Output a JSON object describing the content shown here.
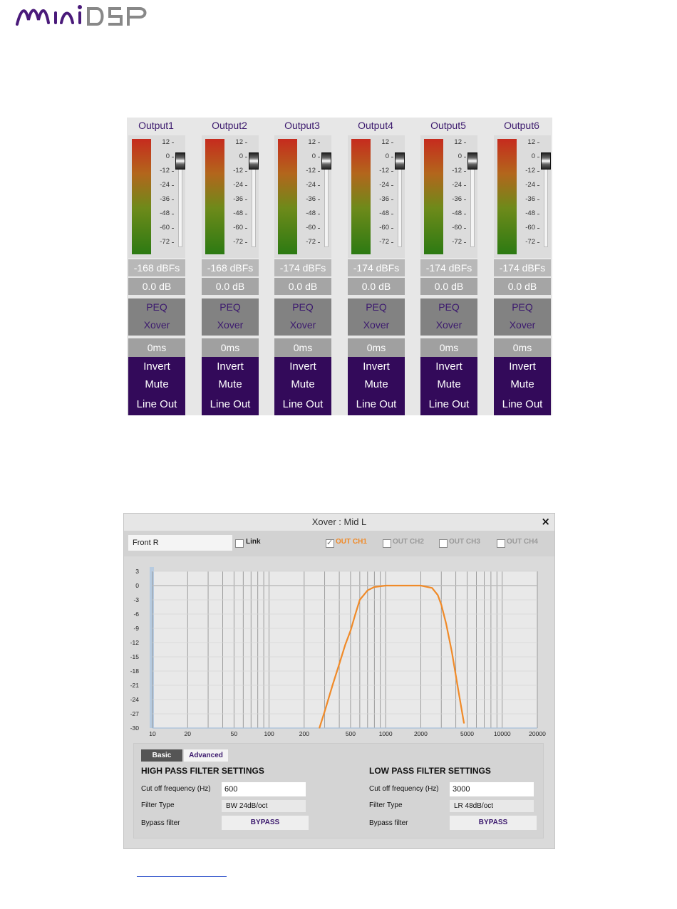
{
  "brand": {
    "logo": "miniDSP",
    "colors": {
      "purple": "#4a1a7a",
      "grey": "#888888"
    }
  },
  "outputs": [
    {
      "title": "Output1",
      "dbfs": "-168 dBFs",
      "gain": "0.0 dB",
      "peq": "PEQ",
      "xover": "Xover",
      "delay": "0ms",
      "invert": "Invert",
      "mute": "Mute",
      "line": "Line Out"
    },
    {
      "title": "Output2",
      "dbfs": "-168 dBFs",
      "gain": "0.0 dB",
      "peq": "PEQ",
      "xover": "Xover",
      "delay": "0ms",
      "invert": "Invert",
      "mute": "Mute",
      "line": "Line Out"
    },
    {
      "title": "Output3",
      "dbfs": "-174 dBFs",
      "gain": "0.0 dB",
      "peq": "PEQ",
      "xover": "Xover",
      "delay": "0ms",
      "invert": "Invert",
      "mute": "Mute",
      "line": "Line Out"
    },
    {
      "title": "Output4",
      "dbfs": "-174 dBFs",
      "gain": "0.0 dB",
      "peq": "PEQ",
      "xover": "Xover",
      "delay": "0ms",
      "invert": "Invert",
      "mute": "Mute",
      "line": "Line Out"
    },
    {
      "title": "Output5",
      "dbfs": "-174 dBFs",
      "gain": "0.0 dB",
      "peq": "PEQ",
      "xover": "Xover",
      "delay": "0ms",
      "invert": "Invert",
      "mute": "Mute",
      "line": "Line Out"
    },
    {
      "title": "Output6",
      "dbfs": "-174 dBFs",
      "gain": "0.0 dB",
      "peq": "PEQ",
      "xover": "Xover",
      "delay": "0ms",
      "invert": "Invert",
      "mute": "Mute",
      "line": "Line Out"
    }
  ],
  "meter_scale": [
    "12",
    "0",
    "-12",
    "-24",
    "-36",
    "-48",
    "-60",
    "-72"
  ],
  "xover": {
    "title": "Xover : Mid L",
    "close": "×",
    "name_value": "Front R",
    "link_label": "Link",
    "channels": [
      {
        "label": "OUT CH1",
        "checked": true,
        "color": "#f08a28"
      },
      {
        "label": "OUT CH2",
        "checked": false,
        "color": "#9a9a9a"
      },
      {
        "label": "OUT CH3",
        "checked": false,
        "color": "#9a9a9a"
      },
      {
        "label": "OUT CH4",
        "checked": false,
        "color": "#9a9a9a"
      }
    ],
    "tabs": {
      "basic": "Basic",
      "advanced": "Advanced"
    },
    "hp": {
      "title": "HIGH PASS FILTER SETTINGS",
      "cutoff_label": "Cut off frequency (Hz)",
      "cutoff_value": "600",
      "type_label": "Filter Type",
      "type_value": "BW 24dB/oct",
      "bypass_label": "Bypass filter",
      "bypass_button": "BYPASS"
    },
    "lp": {
      "title": "LOW PASS FILTER SETTINGS",
      "cutoff_label": "Cut off frequency (Hz)",
      "cutoff_value": "3000",
      "type_label": "Filter Type",
      "type_value": "LR 48dB/oct",
      "bypass_label": "Bypass filter",
      "bypass_button": "BYPASS"
    }
  },
  "chart_data": {
    "type": "line",
    "title": "",
    "xlabel": "",
    "ylabel": "",
    "x_scale": "log",
    "xlim": [
      10,
      20000
    ],
    "ylim": [
      -30,
      3
    ],
    "x_ticks": [
      "10",
      "20",
      "50",
      "100",
      "200",
      "500",
      "1000",
      "2000",
      "5000",
      "10000",
      "20000"
    ],
    "x_tick_values": [
      10,
      20,
      50,
      100,
      200,
      500,
      1000,
      2000,
      5000,
      10000,
      20000
    ],
    "y_ticks": [
      "3",
      "0",
      "-3",
      "-6",
      "-9",
      "-12",
      "-15",
      "-18",
      "-21",
      "-24",
      "-27",
      "-30"
    ],
    "y_tick_values": [
      3,
      0,
      -3,
      -6,
      -9,
      -12,
      -15,
      -18,
      -21,
      -24,
      -27,
      -30
    ],
    "grid": true,
    "series": [
      {
        "color": "#f08a28",
        "x": [
          270,
          300,
          350,
          400,
          450,
          500,
          550,
          600,
          700,
          800,
          1000,
          1500,
          2000,
          2500,
          2800,
          3000,
          3300,
          3700,
          4200,
          4700
        ],
        "y": [
          -30,
          -26.5,
          -21,
          -16.5,
          -12.5,
          -9.5,
          -6,
          -3,
          -1,
          -0.3,
          0,
          0,
          0,
          -0.5,
          -2,
          -4,
          -8,
          -14,
          -22,
          -29
        ]
      }
    ]
  }
}
